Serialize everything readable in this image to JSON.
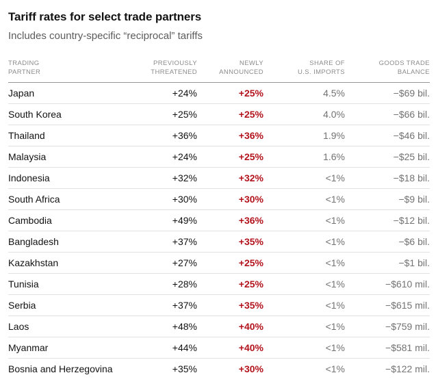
{
  "header": {
    "title": "Tariff rates for select trade partners",
    "subtitle": "Includes country-specific “reciprocal” tariffs"
  },
  "colors": {
    "accent_red": "#b3131c",
    "muted_gray": "#727272",
    "title_color": "#121212",
    "subtitle_color": "#5b5b5b",
    "header_text": "#8b8b8b",
    "header_divider": "#949494",
    "row_divider": "#e2e2e2"
  },
  "chart_data": {
    "type": "table",
    "title": "Tariff rates for select trade partners",
    "subtitle": "Includes country-specific “reciprocal” tariffs",
    "columns": [
      {
        "key": "partner",
        "label_lines": [
          "TRADING",
          "PARTNER"
        ]
      },
      {
        "key": "previously_threatened",
        "label_lines": [
          "PREVIOUSLY",
          "THREATENED"
        ]
      },
      {
        "key": "newly_announced",
        "label_lines": [
          "NEWLY",
          "ANNOUNCED"
        ]
      },
      {
        "key": "share_of_us_imports",
        "label_lines": [
          "SHARE OF",
          "U.S. IMPORTS"
        ]
      },
      {
        "key": "goods_trade_balance",
        "label_lines": [
          "GOODS TRADE",
          "BALANCE"
        ]
      }
    ],
    "rows": [
      {
        "partner": "Japan",
        "previously_threatened": "+24%",
        "newly_announced": "+25%",
        "share_of_us_imports": "4.5%",
        "goods_trade_balance": "−$69 bil."
      },
      {
        "partner": "South Korea",
        "previously_threatened": "+25%",
        "newly_announced": "+25%",
        "share_of_us_imports": "4.0%",
        "goods_trade_balance": "−$66 bil."
      },
      {
        "partner": "Thailand",
        "previously_threatened": "+36%",
        "newly_announced": "+36%",
        "share_of_us_imports": "1.9%",
        "goods_trade_balance": "−$46 bil."
      },
      {
        "partner": "Malaysia",
        "previously_threatened": "+24%",
        "newly_announced": "+25%",
        "share_of_us_imports": "1.6%",
        "goods_trade_balance": "−$25 bil."
      },
      {
        "partner": "Indonesia",
        "previously_threatened": "+32%",
        "newly_announced": "+32%",
        "share_of_us_imports": "<1%",
        "goods_trade_balance": "−$18 bil."
      },
      {
        "partner": "South Africa",
        "previously_threatened": "+30%",
        "newly_announced": "+30%",
        "share_of_us_imports": "<1%",
        "goods_trade_balance": "−$9 bil."
      },
      {
        "partner": "Cambodia",
        "previously_threatened": "+49%",
        "newly_announced": "+36%",
        "share_of_us_imports": "<1%",
        "goods_trade_balance": "−$12 bil."
      },
      {
        "partner": "Bangladesh",
        "previously_threatened": "+37%",
        "newly_announced": "+35%",
        "share_of_us_imports": "<1%",
        "goods_trade_balance": "−$6 bil."
      },
      {
        "partner": "Kazakhstan",
        "previously_threatened": "+27%",
        "newly_announced": "+25%",
        "share_of_us_imports": "<1%",
        "goods_trade_balance": "−$1 bil."
      },
      {
        "partner": "Tunisia",
        "previously_threatened": "+28%",
        "newly_announced": "+25%",
        "share_of_us_imports": "<1%",
        "goods_trade_balance": "−$610 mil."
      },
      {
        "partner": "Serbia",
        "previously_threatened": "+37%",
        "newly_announced": "+35%",
        "share_of_us_imports": "<1%",
        "goods_trade_balance": "−$615 mil."
      },
      {
        "partner": "Laos",
        "previously_threatened": "+48%",
        "newly_announced": "+40%",
        "share_of_us_imports": "<1%",
        "goods_trade_balance": "−$759 mil."
      },
      {
        "partner": "Myanmar",
        "previously_threatened": "+44%",
        "newly_announced": "+40%",
        "share_of_us_imports": "<1%",
        "goods_trade_balance": "−$581 mil."
      },
      {
        "partner": "Bosnia and Herzegovina",
        "previously_threatened": "+35%",
        "newly_announced": "+30%",
        "share_of_us_imports": "<1%",
        "goods_trade_balance": "−$122 mil."
      }
    ]
  }
}
